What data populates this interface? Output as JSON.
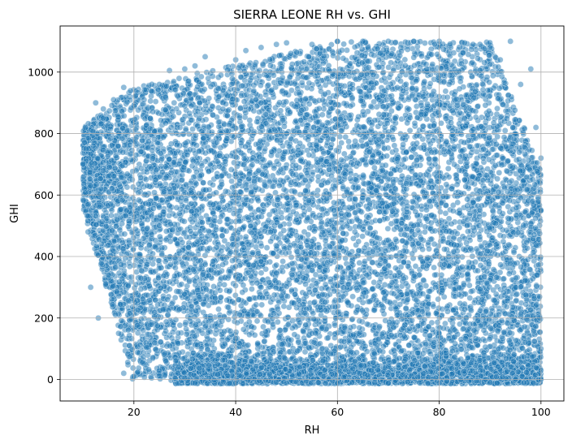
{
  "chart_data": {
    "type": "scatter",
    "title": "SIERRA LEONE RH vs. GHI",
    "xlabel": "RH",
    "ylabel": "GHI",
    "xlim": [
      5.5,
      104.5
    ],
    "ylim": [
      -70,
      1150
    ],
    "xticks": [
      20,
      40,
      60,
      80,
      100
    ],
    "yticks": [
      0,
      200,
      400,
      600,
      800,
      1000
    ],
    "grid": true,
    "marker_color": "#1f77b4",
    "marker_edge_color": "#ffffff",
    "marker_alpha": 0.5,
    "x_range": [
      10,
      100
    ],
    "y_range": [
      -15,
      1100
    ],
    "series": [
      {
        "points": [
          [
            10,
            700
          ],
          [
            10.5,
            820
          ],
          [
            11,
            480
          ],
          [
            11.5,
            300
          ],
          [
            12,
            760
          ],
          [
            12.5,
            900
          ],
          [
            13,
            200
          ],
          [
            13.5,
            620
          ],
          [
            14,
            880
          ],
          [
            15,
            340
          ],
          [
            16,
            910
          ],
          [
            17,
            150
          ],
          [
            18,
            950
          ],
          [
            18,
            20
          ],
          [
            20,
            10
          ],
          [
            22,
            910
          ],
          [
            25,
            960
          ],
          [
            27,
            1005
          ],
          [
            30,
            1010
          ],
          [
            32,
            1020
          ],
          [
            34,
            1050
          ],
          [
            40,
            1040
          ],
          [
            42,
            1070
          ],
          [
            45,
            1080
          ],
          [
            48,
            1090
          ],
          [
            50,
            1095
          ],
          [
            55,
            1090
          ],
          [
            60,
            1100
          ],
          [
            65,
            1100
          ],
          [
            70,
            1100
          ],
          [
            75,
            1100
          ],
          [
            80,
            1100
          ],
          [
            85,
            1095
          ],
          [
            88,
            1090
          ],
          [
            90,
            1080
          ],
          [
            92,
            1040
          ],
          [
            94,
            1100
          ],
          [
            96,
            960
          ],
          [
            98,
            1010
          ],
          [
            99,
            820
          ],
          [
            100,
            720
          ],
          [
            100,
            550
          ],
          [
            100,
            0
          ],
          [
            95,
            0
          ],
          [
            90,
            -10
          ],
          [
            80,
            -12
          ],
          [
            70,
            -12
          ],
          [
            60,
            -12
          ],
          [
            50,
            -12
          ],
          [
            40,
            -12
          ],
          [
            32,
            -12
          ],
          [
            30,
            5
          ],
          [
            35,
            200
          ],
          [
            45,
            300
          ],
          [
            55,
            450
          ],
          [
            65,
            600
          ],
          [
            75,
            750
          ],
          [
            85,
            850
          ],
          [
            95,
            300
          ],
          [
            100,
            100
          ],
          [
            60,
            40
          ],
          [
            40,
            600
          ],
          [
            50,
            800
          ],
          [
            70,
            950
          ],
          [
            80,
            400
          ],
          [
            25,
            500
          ],
          [
            35,
            700
          ],
          [
            45,
            900
          ],
          [
            55,
            150
          ],
          [
            65,
            250
          ],
          [
            75,
            500
          ],
          [
            85,
            650
          ],
          [
            95,
            600
          ]
        ]
      }
    ]
  }
}
